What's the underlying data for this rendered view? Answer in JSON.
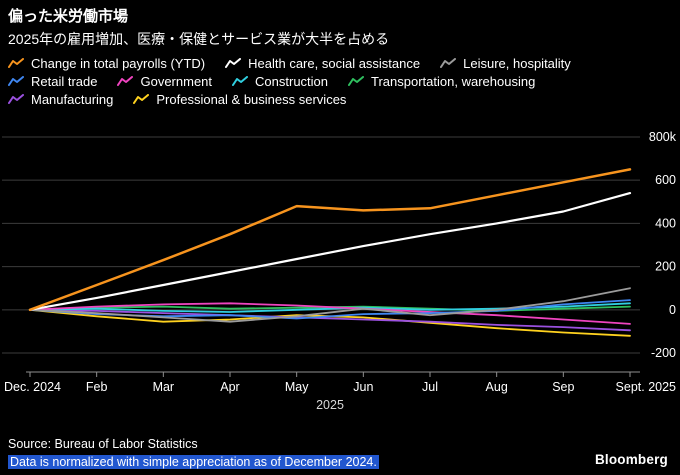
{
  "header": {
    "title": "偏った米労働市場",
    "subtitle": "2025年の雇用増加、医療・保健とサービス業が大半を占める"
  },
  "legend": {
    "rows": [
      [
        0,
        1,
        2
      ],
      [
        3,
        4,
        5,
        6
      ],
      [
        7,
        8
      ]
    ]
  },
  "chart_data": {
    "type": "line",
    "x_labels": [
      "Dec. 2024",
      "Feb",
      "Mar",
      "Apr",
      "May",
      "Jun",
      "Jul",
      "Aug",
      "Sep",
      "Sept. 2025"
    ],
    "x_axis_caption": "2025",
    "y_ticks": [
      800,
      600,
      400,
      200,
      0,
      -200
    ],
    "y_tick_labels": [
      "800k",
      "600",
      "400",
      "200",
      "0",
      "-200"
    ],
    "ylim": [
      -260,
      860
    ],
    "grid": "horizontal",
    "legend_position": "top",
    "series": [
      {
        "name": "Change in total payrolls (YTD)",
        "color": "#f7941e",
        "values": [
          0,
          115,
          230,
          350,
          480,
          460,
          470,
          530,
          590,
          650
        ]
      },
      {
        "name": "Health care, social assistance",
        "color": "#ffffff",
        "values": [
          0,
          55,
          115,
          175,
          235,
          295,
          350,
          400,
          455,
          540
        ]
      },
      {
        "name": "Leisure, hospitality",
        "color": "#9b9b9b",
        "values": [
          0,
          -15,
          -35,
          -55,
          -30,
          5,
          -25,
          0,
          40,
          100
        ]
      },
      {
        "name": "Retail trade",
        "color": "#3f86f0",
        "values": [
          0,
          -20,
          -30,
          -25,
          -40,
          -20,
          -15,
          -5,
          25,
          45
        ]
      },
      {
        "name": "Government",
        "color": "#ef44c0",
        "values": [
          0,
          15,
          25,
          30,
          20,
          5,
          -10,
          -25,
          -45,
          -65
        ]
      },
      {
        "name": "Construction",
        "color": "#30cfe0",
        "values": [
          0,
          5,
          -5,
          -10,
          0,
          10,
          0,
          5,
          15,
          30
        ]
      },
      {
        "name": "Transportation, warehousing",
        "color": "#2fbf5f",
        "values": [
          0,
          10,
          15,
          5,
          10,
          15,
          5,
          -5,
          5,
          15
        ]
      },
      {
        "name": "Manufacturing",
        "color": "#9b51e0",
        "values": [
          0,
          -5,
          -15,
          -25,
          -35,
          -45,
          -55,
          -70,
          -80,
          -95
        ]
      },
      {
        "name": "Professional & business services",
        "color": "#ffd21f",
        "values": [
          0,
          -30,
          -55,
          -45,
          -25,
          -35,
          -60,
          -85,
          -105,
          -120
        ]
      }
    ]
  },
  "footer": {
    "source": "Source: Bureau of Labor Statistics",
    "note": "Data is normalized with simple appreciation as of December 2024.",
    "brand": "Bloomberg"
  }
}
